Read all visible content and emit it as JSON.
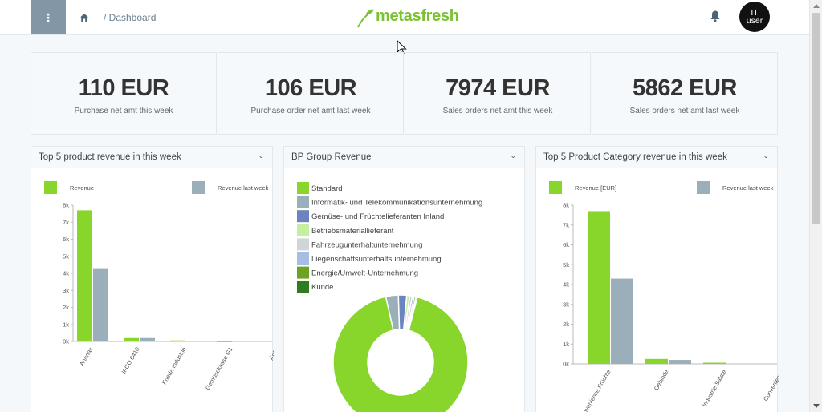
{
  "topbar": {
    "breadcrumb": "/ Dashboard",
    "logo_text": "metasfresh",
    "avatar_line1": "IT",
    "avatar_line2": "user",
    "menu_glyph": "⋮"
  },
  "colors": {
    "accent": "#7ac231",
    "revenue": "#88d62c",
    "revenue_last_week": "#9bafbb",
    "menu_button": "#8296a6"
  },
  "kpis": [
    {
      "value": "110 EUR",
      "label": "Purchase net amt this week"
    },
    {
      "value": "106 EUR",
      "label": "Purchase order net amt last week"
    },
    {
      "value": "7974 EUR",
      "label": "Sales orders net amt this week"
    },
    {
      "value": "5862 EUR",
      "label": "Sales orders net amt last week"
    }
  ],
  "cards": [
    {
      "title": "Top 5 product revenue in this week",
      "chevron": "⌄"
    },
    {
      "title": "BP Group Revenue",
      "chevron": "⌄"
    },
    {
      "title": "Top 5 Product Category revenue in this week",
      "chevron": "⌄"
    }
  ],
  "chart_data": [
    {
      "type": "bar",
      "categories": [
        "Ananas",
        "IFCO 6410",
        "Frieda Industrie",
        "Gemüsekasse G1",
        "Äpfel"
      ],
      "series": [
        {
          "name": "Revenue",
          "values": [
            7700,
            200,
            60,
            30,
            0
          ],
          "color": "#88d62c"
        },
        {
          "name": "Revenue last week",
          "values": [
            4300,
            200,
            0,
            0,
            0
          ],
          "color": "#9bafbb"
        }
      ],
      "yticks": [
        "0k",
        "1k",
        "2k",
        "3k",
        "4k",
        "5k",
        "6k",
        "7k",
        "8k"
      ],
      "ylim": [
        0,
        8000
      ],
      "legend": "top"
    },
    {
      "type": "pie",
      "labels": [
        "Standard",
        "Informatik- und Telekommunikationsunternehmung",
        "Gemüse- und Früchtelieferanten Inland",
        "Betriebsmateriallieferant",
        "Fahrzeugunterhaltunternehmung",
        "Liegenschaftsunterhaltsunternehmung",
        "Energie/Umwelt-Unternehmung",
        "Kunde"
      ],
      "values": [
        92.5,
        3,
        2,
        0.7,
        0.6,
        0.5,
        0.4,
        0.3
      ],
      "colors": [
        "#88d62c",
        "#9bafbb",
        "#6b84c0",
        "#c5eea3",
        "#cfd6da",
        "#a8bde0",
        "#6aa420",
        "#2f7d1f"
      ],
      "legend": "top-left"
    },
    {
      "type": "bar",
      "categories": [
        "Convenience Früchte",
        "Gebinde",
        "Industrie Salate",
        "Convenience"
      ],
      "series": [
        {
          "name": "Revenue [EUR]",
          "values": [
            7700,
            250,
            60,
            0
          ],
          "color": "#88d62c"
        },
        {
          "name": "Revenue last week",
          "values": [
            4300,
            200,
            0,
            0
          ],
          "color": "#9bafbb"
        }
      ],
      "yticks": [
        "0k",
        "1k",
        "2k",
        "3k",
        "4k",
        "5k",
        "6k",
        "7k",
        "8k"
      ],
      "ylim": [
        0,
        8000
      ],
      "legend": "top"
    }
  ]
}
